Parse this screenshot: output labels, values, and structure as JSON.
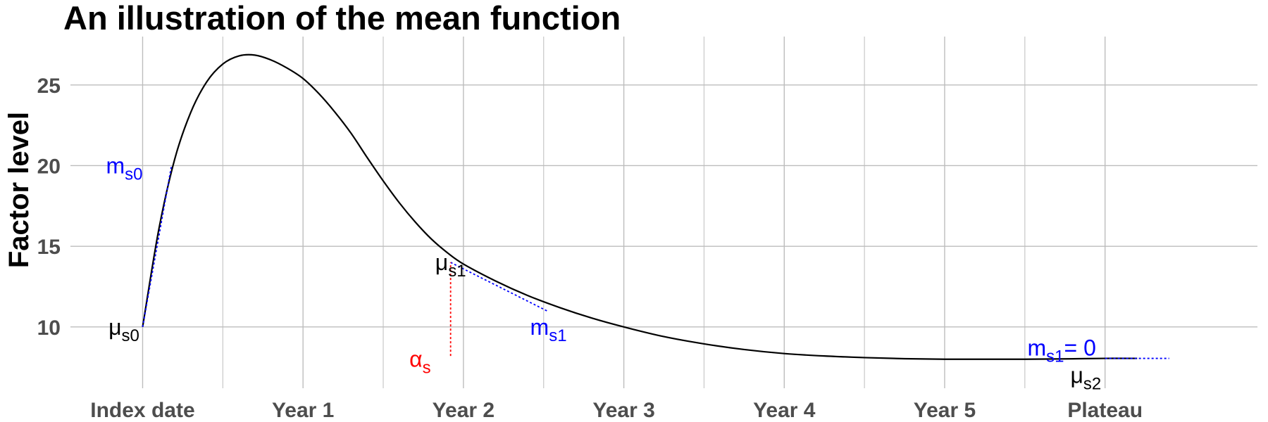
{
  "chart_data": {
    "type": "line",
    "title": "An illustration of the mean function",
    "xlabel": "",
    "ylabel": "Factor level",
    "xlim": [
      -0.45,
      6.95
    ],
    "ylim": [
      6.2,
      28.0
    ],
    "grid": true,
    "x_ticks": [
      {
        "x": 0,
        "label": "Index date"
      },
      {
        "x": 1,
        "label": "Year 1"
      },
      {
        "x": 2,
        "label": "Year 2"
      },
      {
        "x": 3,
        "label": "Year 3"
      },
      {
        "x": 4,
        "label": "Year 4"
      },
      {
        "x": 5,
        "label": "Year 5"
      },
      {
        "x": 6,
        "label": "Plateau"
      }
    ],
    "y_ticks": [
      {
        "y": 10,
        "label": "10"
      },
      {
        "y": 15,
        "label": "15"
      },
      {
        "y": 20,
        "label": "20"
      },
      {
        "y": 25,
        "label": "25"
      }
    ],
    "series": [
      {
        "color": "#000000",
        "x": [
          0,
          0.1,
          0.2,
          0.3,
          0.4,
          0.5,
          0.6,
          0.7,
          0.8,
          0.9,
          1.0,
          1.1,
          1.2,
          1.3,
          1.4,
          1.5,
          1.6,
          1.7,
          1.8,
          1.9,
          2.0,
          2.2,
          2.4,
          2.6,
          2.8,
          3.0,
          3.25,
          3.5,
          3.75,
          4.0,
          4.25,
          4.5,
          4.75,
          5.0,
          5.25,
          5.5,
          5.75,
          6.0,
          6.2
        ],
        "y": [
          10.0,
          16.0,
          20.4,
          23.3,
          25.2,
          26.3,
          26.8,
          26.85,
          26.55,
          26.05,
          25.4,
          24.45,
          23.3,
          22.0,
          20.5,
          19.05,
          17.7,
          16.5,
          15.45,
          14.6,
          13.9,
          12.85,
          11.95,
          11.2,
          10.55,
          10.0,
          9.4,
          8.95,
          8.6,
          8.35,
          8.2,
          8.1,
          8.03,
          8.0,
          8.0,
          8.0,
          8.02,
          8.05,
          8.05
        ]
      }
    ],
    "annotations": {
      "mu_s0": {
        "symbol": "μ",
        "sub": "s0",
        "color": "#000000",
        "x": -0.02,
        "y": 10.0
      },
      "m_s0": {
        "symbol": "m",
        "sub": "s0",
        "color": "#0000ff",
        "x": 0.0,
        "y": 20.0,
        "tangent": {
          "x": [
            0.0,
            0.18
          ],
          "y": [
            10.0,
            20.0
          ]
        }
      },
      "mu_s1": {
        "symbol": "μ",
        "sub": "s1",
        "color": "#000000",
        "x": 1.92,
        "y": 14.0
      },
      "m_s1": {
        "symbol": "m",
        "sub": "s1",
        "color": "#0000ff",
        "x": 2.53,
        "y": 10.0,
        "tangent": {
          "x": [
            1.92,
            2.52
          ],
          "y": [
            14.0,
            11.0
          ]
        }
      },
      "alpha_s": {
        "symbol": "α",
        "sub": "s",
        "color": "#ff0000",
        "x": 1.73,
        "y": 8.0,
        "vline": {
          "x": 1.92,
          "y": [
            8.2,
            14.0
          ]
        }
      },
      "m_s1_zero": {
        "symbol": "m",
        "sub": "s1",
        "suffix": "= 0",
        "color": "#0000ff",
        "x": 5.73,
        "y": 8.7,
        "hline": {
          "x": [
            6.0,
            6.4
          ],
          "y": 8.05
        }
      },
      "mu_s2": {
        "symbol": "μ",
        "sub": "s2",
        "color": "#000000",
        "x": 5.88,
        "y": 7.0
      }
    }
  }
}
